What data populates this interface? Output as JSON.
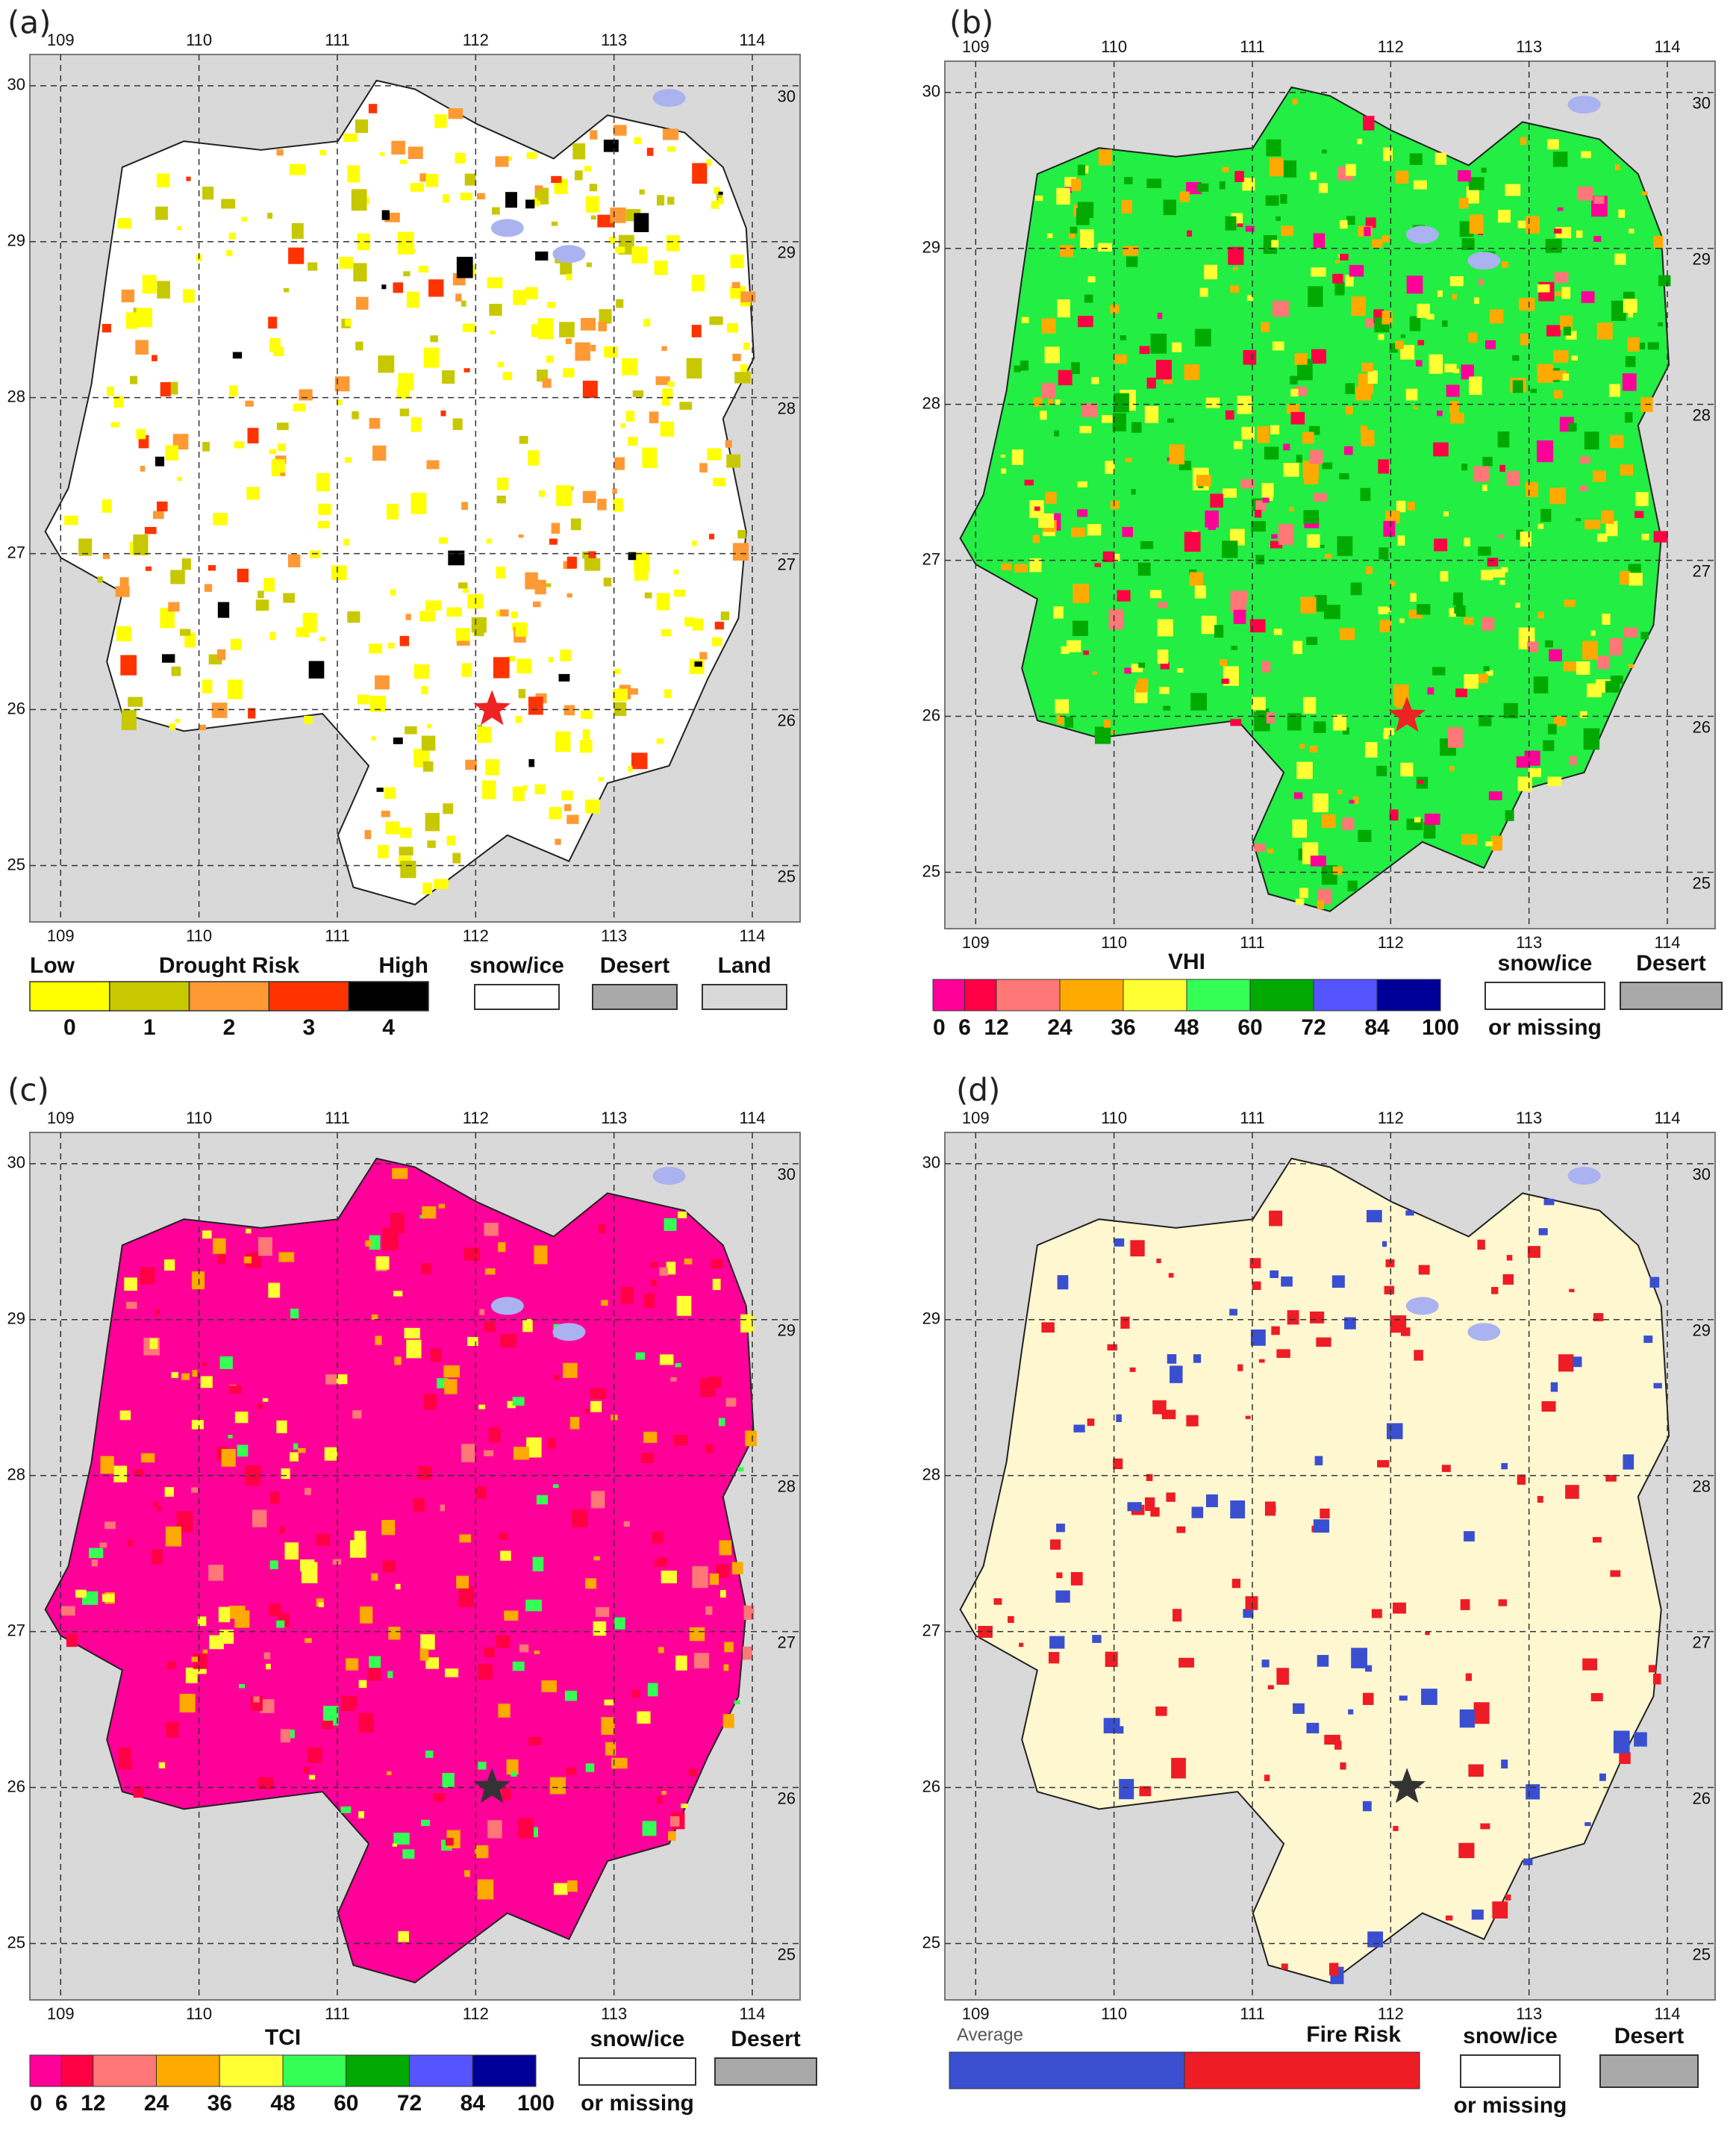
{
  "panels": [
    {
      "label": "(a)",
      "lon_ticks": [
        109,
        110,
        111,
        112,
        113,
        114
      ],
      "lat_ticks": [
        30,
        29,
        28,
        27,
        26,
        25
      ],
      "map": {
        "fill": "#ffffff",
        "star": "#ee2222"
      },
      "legend": {
        "kind": "classes",
        "title": "Drought Risk",
        "low": "Low",
        "high": "High",
        "classes": [
          {
            "label": "0",
            "color": "#ffff00"
          },
          {
            "label": "1",
            "color": "#c8c800"
          },
          {
            "label": "2",
            "color": "#ff9933"
          },
          {
            "label": "3",
            "color": "#ff3300"
          },
          {
            "label": "4",
            "color": "#000000"
          }
        ],
        "others": [
          {
            "label": "snow/ice",
            "color": "#ffffff"
          },
          {
            "label": "Desert",
            "color": "#a9a9a9"
          },
          {
            "label": "Land",
            "color": "#d9d9d9"
          }
        ]
      }
    },
    {
      "label": "(b)",
      "lon_ticks": [
        109,
        110,
        111,
        112,
        113,
        114
      ],
      "lat_ticks": [
        30,
        29,
        28,
        27,
        26,
        25
      ],
      "map": {
        "fill": "#22ee44",
        "star": "#ee2222"
      },
      "legend": {
        "kind": "scale",
        "title": "VHI",
        "scale": [
          0,
          6,
          12,
          24,
          36,
          48,
          60,
          72,
          84,
          100
        ],
        "colors": [
          "#ff0099",
          "#ff0044",
          "#ff7777",
          "#ffaa00",
          "#ffff33",
          "#33ff55",
          "#00aa00",
          "#5555ff",
          "#000099"
        ],
        "others": [
          {
            "label": "snow/ice",
            "sublabel": "or missing",
            "color": "#ffffff"
          },
          {
            "label": "Desert",
            "color": "#a9a9a9"
          }
        ]
      }
    },
    {
      "label": "(c)",
      "lon_ticks": [
        109,
        110,
        111,
        112,
        113,
        114
      ],
      "lat_ticks": [
        30,
        29,
        28,
        27,
        26,
        25
      ],
      "map": {
        "fill": "#ff0099",
        "star": "#333333"
      },
      "legend": {
        "kind": "scale",
        "title": "TCI",
        "scale": [
          0,
          6,
          12,
          24,
          36,
          48,
          60,
          72,
          84,
          100
        ],
        "colors": [
          "#ff0099",
          "#ff0044",
          "#ff7777",
          "#ffaa00",
          "#ffff33",
          "#33ff55",
          "#00aa00",
          "#5555ff",
          "#000099"
        ],
        "others": [
          {
            "label": "snow/ice",
            "sublabel": "or missing",
            "color": "#ffffff"
          },
          {
            "label": "Desert",
            "color": "#a9a9a9"
          }
        ]
      }
    },
    {
      "label": "(d)",
      "lon_ticks": [
        109,
        110,
        111,
        112,
        113,
        114
      ],
      "lat_ticks": [
        30,
        29,
        28,
        27,
        26,
        25
      ],
      "map": {
        "fill": "#fff7d0",
        "star": "#333333"
      },
      "legend": {
        "kind": "fire",
        "title": "Fire Risk",
        "low": "Average",
        "colors": [
          "#3a4fd0",
          "#ee1c24"
        ],
        "others": [
          {
            "label": "snow/ice",
            "sublabel": "or missing",
            "color": "#ffffff"
          },
          {
            "label": "Desert",
            "color": "#a9a9a9"
          }
        ]
      }
    }
  ]
}
